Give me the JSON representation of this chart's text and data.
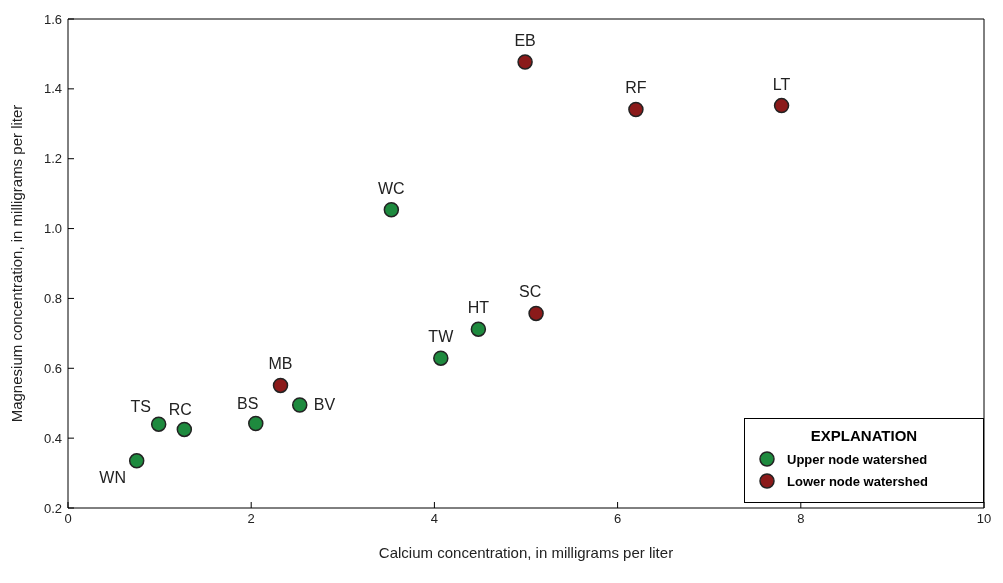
{
  "chart_data": {
    "type": "scatter",
    "xlabel": "Calcium concentration, in milligrams per liter",
    "ylabel": "Magnesium concentration, in milligrams per liter",
    "legend_title": "EXPLANATION",
    "legend": "bottom right",
    "marker": "circle",
    "grid": false,
    "xlim": [
      0,
      10
    ],
    "xticks": [
      0,
      2,
      4,
      6,
      8,
      10
    ],
    "ylim": [
      0.2,
      1.6
    ],
    "yticks": [
      {
        "value": 0.2,
        "label": "0.2"
      },
      {
        "value": 0.4,
        "label": "0.4"
      },
      {
        "value": 0.6,
        "label": "0.6"
      },
      {
        "value": 0.8,
        "label": "0.8"
      },
      {
        "value": 1.0,
        "label": "1.0"
      },
      {
        "value": 1.2,
        "label": "1.2"
      },
      {
        "value": 1.4,
        "label": "1.4"
      },
      {
        "value": 1.6,
        "label": "1.6"
      }
    ],
    "series": [
      {
        "name": "Upper node watershed",
        "color": "#1e8a3e",
        "x": [
          0.75,
          0.99,
          1.27,
          2.05,
          2.53,
          3.53,
          4.07,
          4.48
        ],
        "values": [
          0.335,
          0.44,
          0.425,
          0.442,
          0.495,
          1.054,
          0.629,
          0.712
        ]
      },
      {
        "name": "Lower node watershed",
        "color": "#8b1a1a",
        "x": [
          2.32,
          4.99,
          5.11,
          6.2,
          7.79
        ],
        "values": [
          0.551,
          1.477,
          0.757,
          1.341,
          1.352
        ]
      }
    ],
    "annotations": [
      {
        "text": "WN",
        "x": 0.75,
        "y": 0.335
      },
      {
        "text": "TS",
        "x": 0.99,
        "y": 0.44
      },
      {
        "text": "RC",
        "x": 1.27,
        "y": 0.425
      },
      {
        "text": "BS",
        "x": 2.05,
        "y": 0.442
      },
      {
        "text": "BV",
        "x": 2.53,
        "y": 0.495
      },
      {
        "text": "WC",
        "x": 3.53,
        "y": 1.054
      },
      {
        "text": "TW",
        "x": 4.07,
        "y": 0.629
      },
      {
        "text": "HT",
        "x": 4.48,
        "y": 0.712
      },
      {
        "text": "MB",
        "x": 2.32,
        "y": 0.551
      },
      {
        "text": "EB",
        "x": 4.99,
        "y": 1.477
      },
      {
        "text": "SC",
        "x": 5.11,
        "y": 0.757
      },
      {
        "text": "RF",
        "x": 6.2,
        "y": 1.341
      },
      {
        "text": "LT",
        "x": 7.79,
        "y": 1.352
      }
    ]
  }
}
